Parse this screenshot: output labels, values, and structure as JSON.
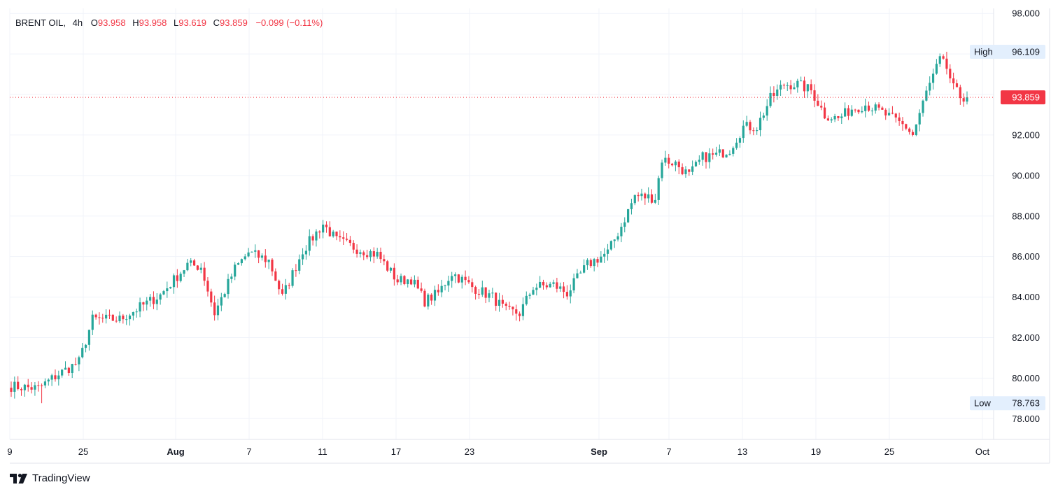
{
  "legend": {
    "symbol": "BRENT OIL,",
    "interval": "4h",
    "open_label": "O",
    "open": "93.958",
    "high_label": "H",
    "high": "93.958",
    "low_label": "L",
    "low": "93.619",
    "close_label": "C",
    "close": "93.859",
    "change": "−0.099 (−0.11%)"
  },
  "price_scale": {
    "labels": [
      "98.000",
      "96.000",
      "94.000",
      "92.000",
      "90.000",
      "88.000",
      "86.000",
      "84.000",
      "82.000",
      "80.000",
      "78.000"
    ],
    "values": [
      98,
      96,
      94,
      92,
      90,
      88,
      86,
      84,
      82,
      80,
      78
    ],
    "high_label": "High",
    "high_value": "96.109",
    "low_label": "Low",
    "low_value": "78.763",
    "last_price": "93.859"
  },
  "time_axis": {
    "labels": [
      "9",
      "25",
      "Aug",
      "7",
      "11",
      "17",
      "23",
      "Sep",
      "7",
      "13",
      "19",
      "25",
      "Oct"
    ],
    "bold": [
      false,
      false,
      true,
      false,
      false,
      false,
      false,
      true,
      false,
      false,
      false,
      false,
      false
    ]
  },
  "branding": {
    "name": "TradingView"
  },
  "colors": {
    "up": "#26a69a",
    "down": "#f23645",
    "grid": "#f0f3fa",
    "text": "#131722",
    "price_tag": "#f23645",
    "hilo_tag": "#e3effd"
  },
  "chart_data": {
    "type": "candlestick",
    "title": "BRENT OIL, 4h",
    "ylim": [
      77,
      98.3
    ],
    "high": 96.109,
    "low": 78.763,
    "last": 93.859,
    "anchors": [
      [
        0,
        79.6
      ],
      [
        8,
        79.5
      ],
      [
        14,
        80.2
      ],
      [
        20,
        80.8
      ],
      [
        24,
        82.9
      ],
      [
        32,
        82.9
      ],
      [
        36,
        83.3
      ],
      [
        44,
        84.1
      ],
      [
        52,
        85.6
      ],
      [
        56,
        85.5
      ],
      [
        60,
        83.2
      ],
      [
        66,
        85.4
      ],
      [
        70,
        86.2
      ],
      [
        76,
        85.8
      ],
      [
        80,
        84.0
      ],
      [
        86,
        86.3
      ],
      [
        92,
        87.6
      ],
      [
        96,
        86.8
      ],
      [
        102,
        86.4
      ],
      [
        108,
        86.1
      ],
      [
        114,
        84.8
      ],
      [
        118,
        84.9
      ],
      [
        122,
        83.8
      ],
      [
        126,
        84.2
      ],
      [
        130,
        85.2
      ],
      [
        136,
        84.5
      ],
      [
        142,
        84.0
      ],
      [
        146,
        83.3
      ],
      [
        150,
        83.2
      ],
      [
        154,
        84.5
      ],
      [
        160,
        84.6
      ],
      [
        164,
        84.2
      ],
      [
        170,
        85.6
      ],
      [
        176,
        86.2
      ],
      [
        180,
        87.5
      ],
      [
        184,
        89.0
      ],
      [
        190,
        88.9
      ],
      [
        192,
        90.8
      ],
      [
        196,
        90.6
      ],
      [
        200,
        90.0
      ],
      [
        204,
        90.9
      ],
      [
        208,
        91.0
      ],
      [
        212,
        91.3
      ],
      [
        216,
        92.4
      ],
      [
        220,
        92.4
      ],
      [
        224,
        93.8
      ],
      [
        228,
        94.5
      ],
      [
        232,
        94.5
      ],
      [
        236,
        94.2
      ],
      [
        240,
        93.0
      ],
      [
        244,
        92.8
      ],
      [
        248,
        93.3
      ],
      [
        252,
        93.5
      ],
      [
        256,
        93.2
      ],
      [
        260,
        92.8
      ],
      [
        264,
        92.4
      ],
      [
        266,
        92.0
      ],
      [
        270,
        94.1
      ],
      [
        274,
        95.7
      ],
      [
        276,
        95.3
      ],
      [
        278,
        94.3
      ],
      [
        280,
        93.9
      ],
      [
        282,
        93.86
      ]
    ]
  }
}
